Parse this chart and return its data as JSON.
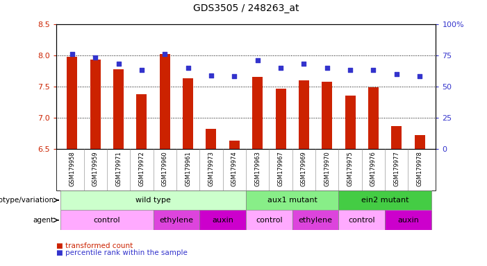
{
  "title": "GDS3505 / 248263_at",
  "samples": [
    "GSM179958",
    "GSM179959",
    "GSM179971",
    "GSM179972",
    "GSM179960",
    "GSM179961",
    "GSM179973",
    "GSM179974",
    "GSM179963",
    "GSM179967",
    "GSM179969",
    "GSM179970",
    "GSM179975",
    "GSM179976",
    "GSM179977",
    "GSM179978"
  ],
  "bar_values": [
    7.97,
    7.93,
    7.78,
    7.38,
    8.02,
    7.63,
    6.82,
    6.63,
    7.65,
    7.46,
    7.6,
    7.58,
    7.35,
    7.49,
    6.87,
    6.72
  ],
  "blue_values": [
    76,
    73,
    68,
    63,
    76,
    65,
    59,
    58,
    71,
    65,
    68,
    65,
    63,
    63,
    60,
    58
  ],
  "ylim_left": [
    6.5,
    8.5
  ],
  "ylim_right": [
    0,
    100
  ],
  "yticks_left": [
    6.5,
    7.0,
    7.5,
    8.0,
    8.5
  ],
  "yticks_right": [
    0,
    25,
    50,
    75,
    100
  ],
  "bar_color": "#cc2200",
  "blue_color": "#3333cc",
  "genotype_groups": [
    {
      "label": "wild type",
      "start": 0,
      "end": 8,
      "color": "#ccffcc"
    },
    {
      "label": "aux1 mutant",
      "start": 8,
      "end": 12,
      "color": "#88ee88"
    },
    {
      "label": "ein2 mutant",
      "start": 12,
      "end": 16,
      "color": "#44cc44"
    }
  ],
  "agent_groups": [
    {
      "label": "control",
      "start": 0,
      "end": 4,
      "color": "#ffaaff"
    },
    {
      "label": "ethylene",
      "start": 4,
      "end": 6,
      "color": "#dd44dd"
    },
    {
      "label": "auxin",
      "start": 6,
      "end": 8,
      "color": "#cc00cc"
    },
    {
      "label": "control",
      "start": 8,
      "end": 10,
      "color": "#ffaaff"
    },
    {
      "label": "ethylene",
      "start": 10,
      "end": 12,
      "color": "#dd44dd"
    },
    {
      "label": "control",
      "start": 12,
      "end": 14,
      "color": "#ffaaff"
    },
    {
      "label": "auxin",
      "start": 14,
      "end": 16,
      "color": "#cc00cc"
    }
  ],
  "legend_red_label": "transformed count",
  "legend_blue_label": "percentile rank within the sample",
  "left_label_color": "#cc2200",
  "right_label_color": "#3333cc"
}
